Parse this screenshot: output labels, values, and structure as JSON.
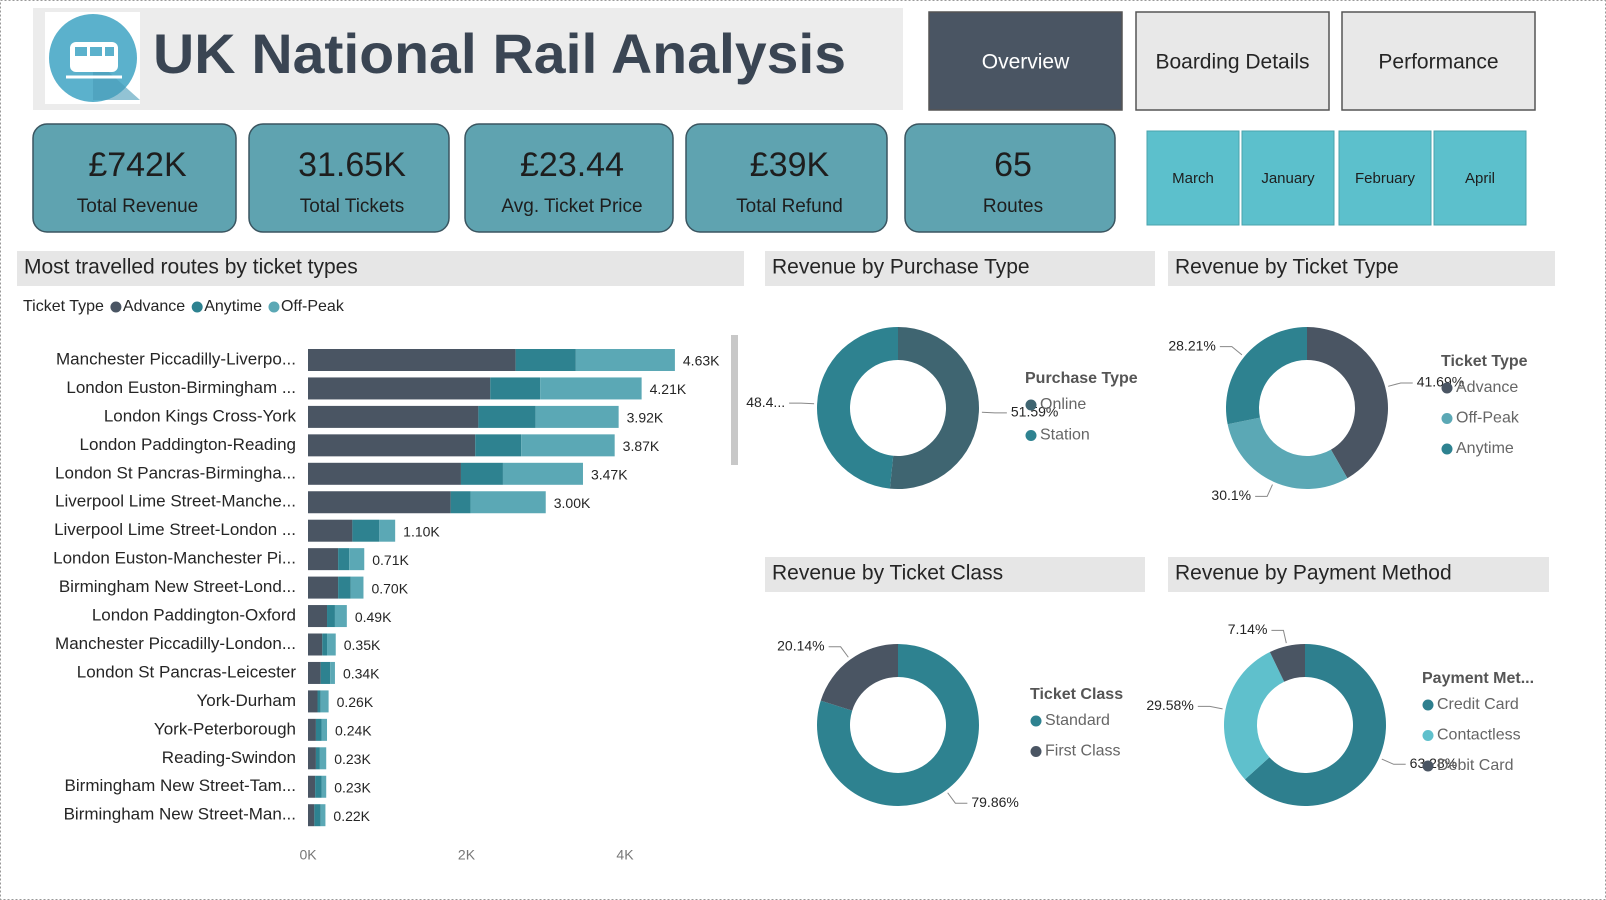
{
  "header": {
    "title": "UK National Rail Analysis"
  },
  "nav": [
    "Overview",
    "Boarding Details",
    "Performance"
  ],
  "kpis": [
    {
      "value": "£742K",
      "label": "Total Revenue"
    },
    {
      "value": "31.65K",
      "label": "Total Tickets"
    },
    {
      "value": "£23.44",
      "label": "Avg. Ticket Price"
    },
    {
      "value": "£39K",
      "label": "Total Refund"
    },
    {
      "value": "65",
      "label": "Routes"
    }
  ],
  "months": [
    "March",
    "January",
    "February",
    "April"
  ],
  "chart_data": [
    {
      "type": "bar",
      "orientation": "horizontal",
      "stacked": true,
      "title": "Most travelled routes by ticket types",
      "legend_title": "Ticket Type",
      "categories": [
        "Manchester Piccadilly-Liverpo...",
        "London Euston-Birmingham ...",
        "London Kings Cross-York",
        "London Paddington-Reading",
        "London St Pancras-Birmingha...",
        "Liverpool Lime Street-Manche...",
        "Liverpool Lime Street-London ...",
        "London Euston-Manchester Pi...",
        "Birmingham New Street-Lond...",
        "London Paddington-Oxford",
        "Manchester Piccadilly-London...",
        "London St Pancras-Leicester",
        "York-Durham",
        "York-Peterborough",
        "Reading-Swindon",
        "Birmingham New Street-Tam...",
        "Birmingham New Street-Man..."
      ],
      "series": [
        {
          "name": "Advance",
          "color": "#4a5563",
          "values": [
            2620,
            2300,
            2150,
            2110,
            1930,
            1800,
            560,
            380,
            380,
            240,
            180,
            160,
            120,
            100,
            100,
            90,
            80
          ]
        },
        {
          "name": "Anytime",
          "color": "#2e8290",
          "values": [
            760,
            630,
            720,
            580,
            530,
            250,
            340,
            140,
            160,
            100,
            60,
            120,
            40,
            70,
            50,
            80,
            80
          ]
        },
        {
          "name": "Off-Peak",
          "color": "#5ba8b5",
          "values": [
            1250,
            1280,
            1050,
            1180,
            1010,
            950,
            200,
            190,
            160,
            150,
            110,
            60,
            100,
            70,
            80,
            60,
            60
          ]
        }
      ],
      "totals": [
        4630,
        4210,
        3920,
        3870,
        3470,
        3000,
        1100,
        710,
        700,
        490,
        350,
        340,
        260,
        240,
        230,
        230,
        220
      ],
      "total_labels": [
        "4.63K",
        "4.21K",
        "3.92K",
        "3.87K",
        "3.47K",
        "3.00K",
        "1.10K",
        "0.71K",
        "0.70K",
        "0.49K",
        "0.35K",
        "0.34K",
        "0.26K",
        "0.24K",
        "0.23K",
        "0.23K",
        "0.22K"
      ],
      "xlim": [
        0,
        5300
      ],
      "xticks": [
        {
          "value": 0,
          "label": "0K"
        },
        {
          "value": 2000,
          "label": "2K"
        },
        {
          "value": 4000,
          "label": "4K"
        }
      ]
    },
    {
      "type": "donut",
      "title": "Revenue by Purchase Type",
      "legend_title": "Purchase Type",
      "categories": [
        "Online",
        "Station"
      ],
      "values": [
        51.59,
        48.41
      ],
      "value_labels": [
        "51.59%",
        "48.4..."
      ],
      "colors": [
        "#3f6571",
        "#2e8290"
      ]
    },
    {
      "type": "donut",
      "title": "Revenue by Ticket Type",
      "legend_title": "Ticket Type",
      "categories": [
        "Advance",
        "Off-Peak",
        "Anytime"
      ],
      "values": [
        41.69,
        30.1,
        28.21
      ],
      "value_labels": [
        "41.69%",
        "30.1%",
        "28.21%"
      ],
      "colors": [
        "#4a5563",
        "#5ba8b5",
        "#2e8290"
      ]
    },
    {
      "type": "donut",
      "title": "Revenue by Ticket Class",
      "legend_title": "Ticket Class",
      "categories": [
        "Standard",
        "First Class"
      ],
      "values": [
        79.86,
        20.14
      ],
      "value_labels": [
        "79.86%",
        "20.14%"
      ],
      "colors": [
        "#2e8290",
        "#4a5563"
      ]
    },
    {
      "type": "donut",
      "title": "Revenue by Payment Method",
      "legend_title": "Payment Met...",
      "categories": [
        "Credit Card",
        "Contactless",
        "Debit Card"
      ],
      "values": [
        63.28,
        29.58,
        7.14
      ],
      "value_labels": [
        "63.28%",
        "29.58%",
        "7.14%"
      ],
      "colors": [
        "#2e7f8e",
        "#5fc0cc",
        "#4a5563"
      ]
    }
  ]
}
